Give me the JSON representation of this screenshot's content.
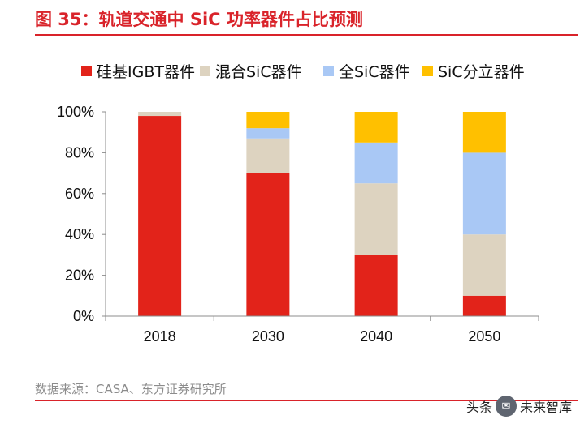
{
  "title": "图 35：轨道交通中 SiC 功率器件占比预测",
  "source": "数据来源：CASA、东方证券研究所",
  "watermark": {
    "prefix": "头条",
    "icon": "✉",
    "name": "未来智库"
  },
  "chart_data": {
    "type": "bar",
    "stacked": true,
    "categories": [
      "2018",
      "2030",
      "2040",
      "2050"
    ],
    "series": [
      {
        "name": "硅基IGBT器件",
        "color": "#e2231a",
        "values": [
          98,
          70,
          30,
          10
        ]
      },
      {
        "name": "混合SiC器件",
        "color": "#ddd3c0",
        "values": [
          2,
          17,
          35,
          30
        ]
      },
      {
        "name": "全SiC器件",
        "color": "#a9c8f5",
        "values": [
          0,
          5,
          20,
          40
        ]
      },
      {
        "name": "SiC分立器件",
        "color": "#ffc000",
        "values": [
          0,
          8,
          15,
          20
        ]
      }
    ],
    "ylim": [
      0,
      100
    ],
    "yticks": [
      "0%",
      "20%",
      "40%",
      "60%",
      "80%",
      "100%"
    ],
    "grid": false,
    "legend_position": "top"
  }
}
